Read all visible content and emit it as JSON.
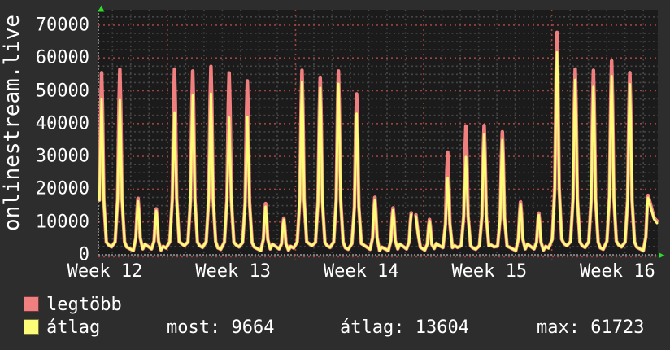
{
  "title_vertical": "onlinestream.live",
  "colors": {
    "background": "#2d2d2d",
    "plot_background": "#1b1b1b",
    "grid_minor": "#474747",
    "grid_major": "#a04343",
    "axis": "#999999",
    "arrow": "#29dd29",
    "text": "#ffffff",
    "series_max": "#f08080",
    "series_avg": "#fcfc78"
  },
  "legend": {
    "items": [
      {
        "label": "legtöbb",
        "color": "#f08080"
      },
      {
        "label": "átlag",
        "color": "#fcfc78"
      }
    ]
  },
  "stats": [
    {
      "label": "most",
      "value": "9664"
    },
    {
      "label": "átlag",
      "value": "13604"
    },
    {
      "label": "max",
      "value": "61723"
    }
  ],
  "y_axis": {
    "tick_labels": [
      "0",
      "10000",
      "20000",
      "30000",
      "40000",
      "50000",
      "60000",
      "70000"
    ],
    "tick_values": [
      0,
      10000,
      20000,
      30000,
      40000,
      50000,
      60000,
      70000
    ]
  },
  "x_axis": {
    "labels": [
      "Week 12",
      "Week 13",
      "Week 14",
      "Week 15",
      "Week 16"
    ]
  },
  "icons": {
    "y_axis_arrow": "up-arrow",
    "x_axis_arrow": "right-arrow"
  },
  "chart_data": {
    "type": "line",
    "title": "onlinestream.live",
    "xlabel_weeks": [
      "Week 12",
      "Week 13",
      "Week 14",
      "Week 15",
      "Week 16"
    ],
    "ylim": [
      0,
      75000
    ],
    "grid": {
      "major_every": 10000,
      "minor_every": 2500,
      "vertical_unit": "day",
      "vertical_major": "week"
    },
    "legend_position": "bottom-left",
    "days": 31,
    "gap_after_day": 17,
    "valley_base": 2100,
    "series": [
      {
        "name": "legtöbb",
        "color": "#f08080",
        "current": 10300,
        "daily_peaks": [
          55500,
          56500,
          17200,
          14000,
          56600,
          56000,
          57400,
          55400,
          53000,
          15600,
          11200,
          56200,
          54100,
          56000,
          49000,
          17500,
          14300,
          12800,
          10800,
          31300,
          39200,
          39400,
          37500,
          16100,
          12700,
          67800,
          56600,
          56200,
          59100,
          55500,
          18100
        ]
      },
      {
        "name": "átlag",
        "color": "#fcfc78",
        "current": 9664,
        "average": 13604,
        "max": 61723,
        "daily_peaks": [
          47400,
          47200,
          16300,
          13400,
          43400,
          48600,
          49100,
          41800,
          42000,
          14700,
          10700,
          52700,
          50900,
          52100,
          43000,
          16600,
          13600,
          12300,
          10300,
          23300,
          29800,
          36600,
          35000,
          15300,
          12100,
          61723,
          53300,
          51200,
          54500,
          52000,
          17400
        ]
      }
    ]
  }
}
